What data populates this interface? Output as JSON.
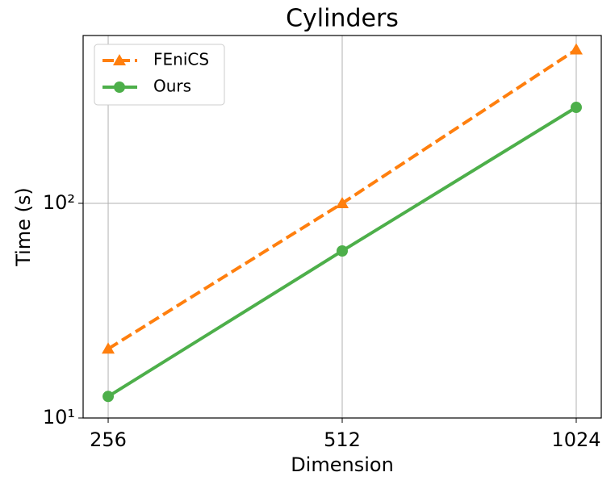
{
  "chart_data": {
    "type": "line",
    "title": "Cylinders",
    "x_label": "Dimension",
    "y_label": "Time (s)",
    "categories": [
      "256",
      "512",
      "1024"
    ],
    "series": [
      {
        "name": "FEniCS",
        "color": "#ff7f0e",
        "linestyle": "dashed",
        "marker": "triangle",
        "values": [
          21,
          100,
          520
        ]
      },
      {
        "name": "Ours",
        "color": "#4daf4a",
        "linestyle": "solid",
        "marker": "circle",
        "values": [
          12.6,
          60,
          280
        ]
      }
    ],
    "ylim": [
      10,
      605
    ],
    "yscale": "log",
    "yticks": [
      {
        "value": 10,
        "label": "10¹"
      },
      {
        "value": 100,
        "label": "10²"
      }
    ],
    "grid": true,
    "legend": "upper left"
  }
}
